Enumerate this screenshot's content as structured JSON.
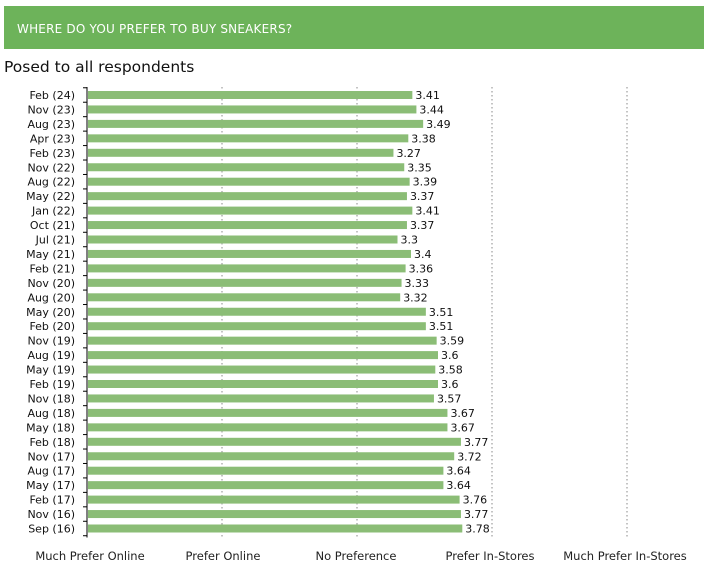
{
  "title": "WHERE DO YOU PREFER TO BUY SNEAKERS?",
  "subtitle": "Posed to all respondents",
  "colors": {
    "bar": "#8bbd76",
    "title_bg": "#6db35a",
    "gridline": "#8a8a8a"
  },
  "chart_data": {
    "type": "bar",
    "orientation": "horizontal",
    "title": "WHERE DO YOU PREFER TO BUY SNEAKERS?",
    "subtitle": "Posed to all respondents",
    "xlim": [
      1,
      5
    ],
    "x_ticks": [
      1,
      2,
      3,
      4,
      5
    ],
    "x_tick_labels": [
      "Much Prefer Online",
      "Prefer Online",
      "No Preference",
      "Prefer In-Stores",
      "Much Prefer In-Stores"
    ],
    "grid": "vertical dotted",
    "categories": [
      "Feb (24)",
      "Nov (23)",
      "Aug (23)",
      "Apr (23)",
      "Feb (23)",
      "Nov (22)",
      "Aug (22)",
      "May (22)",
      "Jan (22)",
      "Oct (21)",
      "Jul (21)",
      "May (21)",
      "Feb (21)",
      "Nov (20)",
      "Aug (20)",
      "May (20)",
      "Feb (20)",
      "Nov (19)",
      "Aug (19)",
      "May (19)",
      "Feb (19)",
      "Nov (18)",
      "Aug (18)",
      "May (18)",
      "Feb (18)",
      "Nov (17)",
      "Aug (17)",
      "May (17)",
      "Feb (17)",
      "Nov (16)",
      "Sep (16)"
    ],
    "values": [
      3.41,
      3.44,
      3.49,
      3.38,
      3.27,
      3.35,
      3.39,
      3.37,
      3.41,
      3.37,
      3.3,
      3.4,
      3.36,
      3.33,
      3.32,
      3.51,
      3.51,
      3.59,
      3.6,
      3.58,
      3.6,
      3.57,
      3.67,
      3.67,
      3.77,
      3.72,
      3.64,
      3.64,
      3.76,
      3.77,
      3.78
    ],
    "value_labels": [
      "3.41",
      "3.44",
      "3.49",
      "3.38",
      "3.27",
      "3.35",
      "3.39",
      "3.37",
      "3.41",
      "3.37",
      "3.3",
      "3.4",
      "3.36",
      "3.33",
      "3.32",
      "3.51",
      "3.51",
      "3.59",
      "3.6",
      "3.58",
      "3.6",
      "3.57",
      "3.67",
      "3.67",
      "3.77",
      "3.72",
      "3.64",
      "3.64",
      "3.76",
      "3.77",
      "3.78"
    ]
  }
}
